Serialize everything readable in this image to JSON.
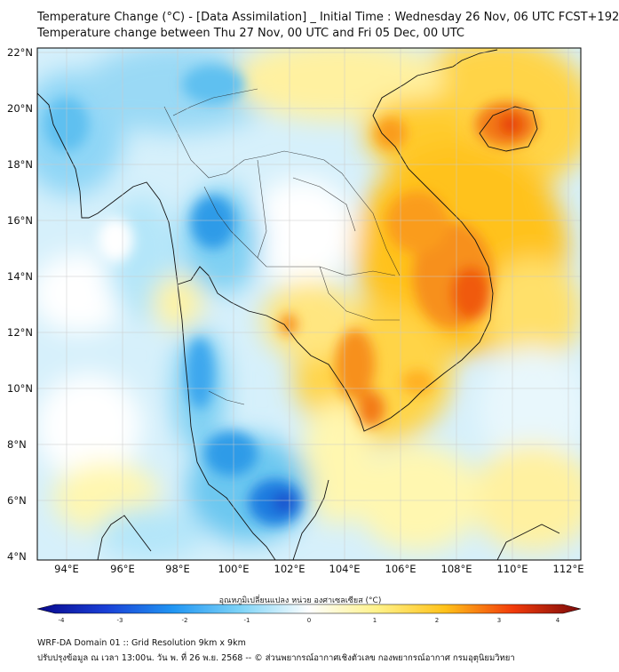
{
  "header": {
    "title_line1": "Temperature Change (°C) - [Data Assimilation] _ Initial Time : Wednesday 26 Nov, 06 UTC FCST+192",
    "title_line2": "Temperature change between Thu 27 Nov, 00 UTC and Fri 05 Dec, 00 UTC"
  },
  "map": {
    "lat_labels": [
      "22°N",
      "20°N",
      "18°N",
      "16°N",
      "14°N",
      "12°N",
      "10°N",
      "8°N",
      "6°N",
      "4°N"
    ],
    "lon_labels": [
      "94°E",
      "96°E",
      "98°E",
      "100°E",
      "102°E",
      "104°E",
      "106°E",
      "108°E",
      "110°E",
      "112°E"
    ],
    "lat_range": [
      4,
      22.3
    ],
    "lon_range": [
      93,
      112.5
    ]
  },
  "colorbar": {
    "title": "อุณหภูมิเปลี่ยนแปลง หน่วย องศาเซลเซียส (°C)",
    "tick_labels": [
      "-4",
      "-3",
      "-2",
      "-1",
      "0",
      "1",
      "2",
      "3",
      "4"
    ],
    "range": [
      -4,
      4
    ],
    "colors": {
      "neg4": "#08088c",
      "neg3": "#1a3fd6",
      "neg2": "#2196f3",
      "neg1": "#7fd4f7",
      "zero": "#ffffff",
      "pos1": "#fff28a",
      "pos2": "#ffc21a",
      "pos3": "#f23b0a",
      "pos4": "#7a0a0a"
    }
  },
  "footer": {
    "line1": "WRF-DA Domain 01 :: Grid Resolution 9km x 9km",
    "line2": "ปรับปรุงข้อมูล ณ เวลา 13:00น. วัน พ. ที่ 26 พ.ย. 2568 -- © ส่วนพยากรณ์อากาศเชิงตัวเลข กองพยากรณ์อากาศ กรมอุตุนิยมวิทยา"
  }
}
